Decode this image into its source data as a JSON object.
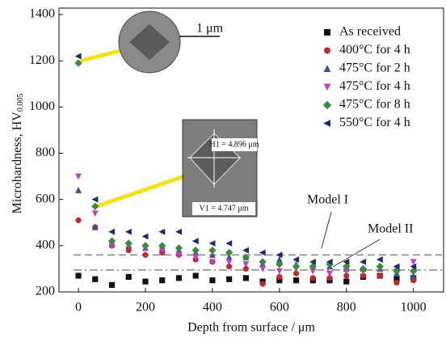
{
  "chart_data": {
    "type": "scatter",
    "x_label": "Depth from surface / μm",
    "y_label": "Microhardness, HV",
    "y_label_subscript": "0.005",
    "xlim": [
      -58,
      1090
    ],
    "xticks": [
      0,
      200,
      400,
      600,
      800,
      1000
    ],
    "ylim": [
      200,
      1400
    ],
    "yticks": [
      200,
      400,
      600,
      800,
      1000,
      1200,
      1400
    ],
    "x": [
      0,
      50,
      100,
      150,
      200,
      250,
      300,
      350,
      400,
      450,
      500,
      550,
      600,
      650,
      700,
      750,
      800,
      850,
      900,
      950,
      1000
    ],
    "series": [
      {
        "name": "As received",
        "color": "#111111",
        "marker": "square",
        "values": [
          270,
          255,
          230,
          265,
          245,
          250,
          260,
          270,
          250,
          255,
          260,
          245,
          250,
          250,
          250,
          250,
          245,
          265,
          270,
          255,
          260
        ]
      },
      {
        "name": "400°C for 4 h",
        "color": "#c0282d",
        "marker": "circle",
        "values": [
          510,
          480,
          400,
          380,
          360,
          370,
          360,
          340,
          330,
          310,
          300,
          235,
          265,
          280,
          260,
          260,
          270,
          270,
          270,
          240,
          250
        ]
      },
      {
        "name": "475°C for 2 h",
        "color": "#3a4fa0",
        "marker": "triangle-up",
        "values": [
          640,
          480,
          410,
          400,
          390,
          390,
          380,
          370,
          360,
          350,
          350,
          320,
          340,
          320,
          310,
          310,
          300,
          300,
          300,
          280,
          270
        ]
      },
      {
        "name": "475°C for 4 h",
        "color": "#c040c8",
        "marker": "triangle-down",
        "values": [
          700,
          540,
          400,
          400,
          390,
          380,
          360,
          350,
          330,
          330,
          320,
          300,
          290,
          300,
          290,
          280,
          290,
          290,
          300,
          290,
          330
        ]
      },
      {
        "name": "475°C for 8 h",
        "color": "#3a8a3a",
        "marker": "diamond",
        "values": [
          1190,
          570,
          420,
          410,
          400,
          400,
          390,
          380,
          380,
          370,
          350,
          330,
          320,
          310,
          310,
          320,
          310,
          300,
          310,
          290,
          290
        ]
      },
      {
        "name": "550°C for 4 h",
        "color": "#1f2a6e",
        "marker": "triangle-left",
        "values": [
          1220,
          600,
          460,
          460,
          440,
          460,
          460,
          420,
          410,
          410,
          380,
          370,
          360,
          340,
          330,
          330,
          330,
          330,
          340,
          310,
          310
        ]
      }
    ],
    "reference_lines": [
      {
        "label": "Model I",
        "value": 360,
        "style": "dashed"
      },
      {
        "label": "Model II",
        "value": 295,
        "style": "dashdot"
      }
    ],
    "annotations": [
      "1 μm",
      "H1 = 4.896 μm",
      "V1 = 4.747 μm"
    ],
    "legend": "top-right"
  }
}
